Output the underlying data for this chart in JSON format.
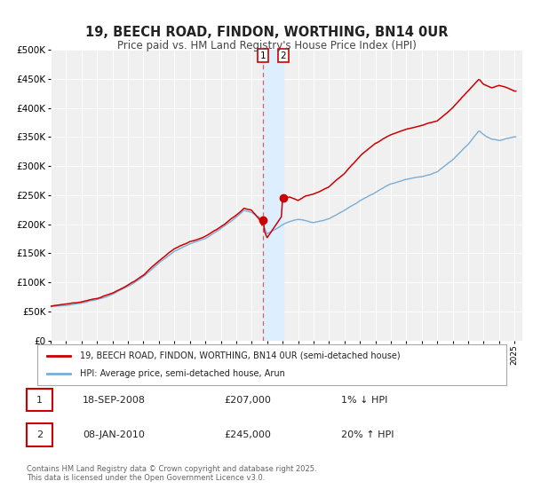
{
  "title": "19, BEECH ROAD, FINDON, WORTHING, BN14 0UR",
  "subtitle": "Price paid vs. HM Land Registry's House Price Index (HPI)",
  "legend_red": "19, BEECH ROAD, FINDON, WORTHING, BN14 0UR (semi-detached house)",
  "legend_blue": "HPI: Average price, semi-detached house, Arun",
  "transaction1_label": "1",
  "transaction1_date": "18-SEP-2008",
  "transaction1_price": "£207,000",
  "transaction1_pct": "1% ↓ HPI",
  "transaction2_label": "2",
  "transaction2_date": "08-JAN-2010",
  "transaction2_price": "£245,000",
  "transaction2_pct": "20% ↑ HPI",
  "copyright": "Contains HM Land Registry data © Crown copyright and database right 2025.\nThis data is licensed under the Open Government Licence v3.0.",
  "red_color": "#cc0000",
  "blue_color": "#7aadd4",
  "bg_color": "#ffffff",
  "plot_bg": "#f0f0f0",
  "shade_color": "#ddeeff",
  "dashed_color": "#dd4444",
  "ylim_min": 0,
  "ylim_max": 500000,
  "year_start": 1995,
  "year_end": 2025,
  "trans1_year": 2008.72,
  "trans2_year": 2010.03,
  "trans1_price": 207000,
  "trans2_price": 245000
}
